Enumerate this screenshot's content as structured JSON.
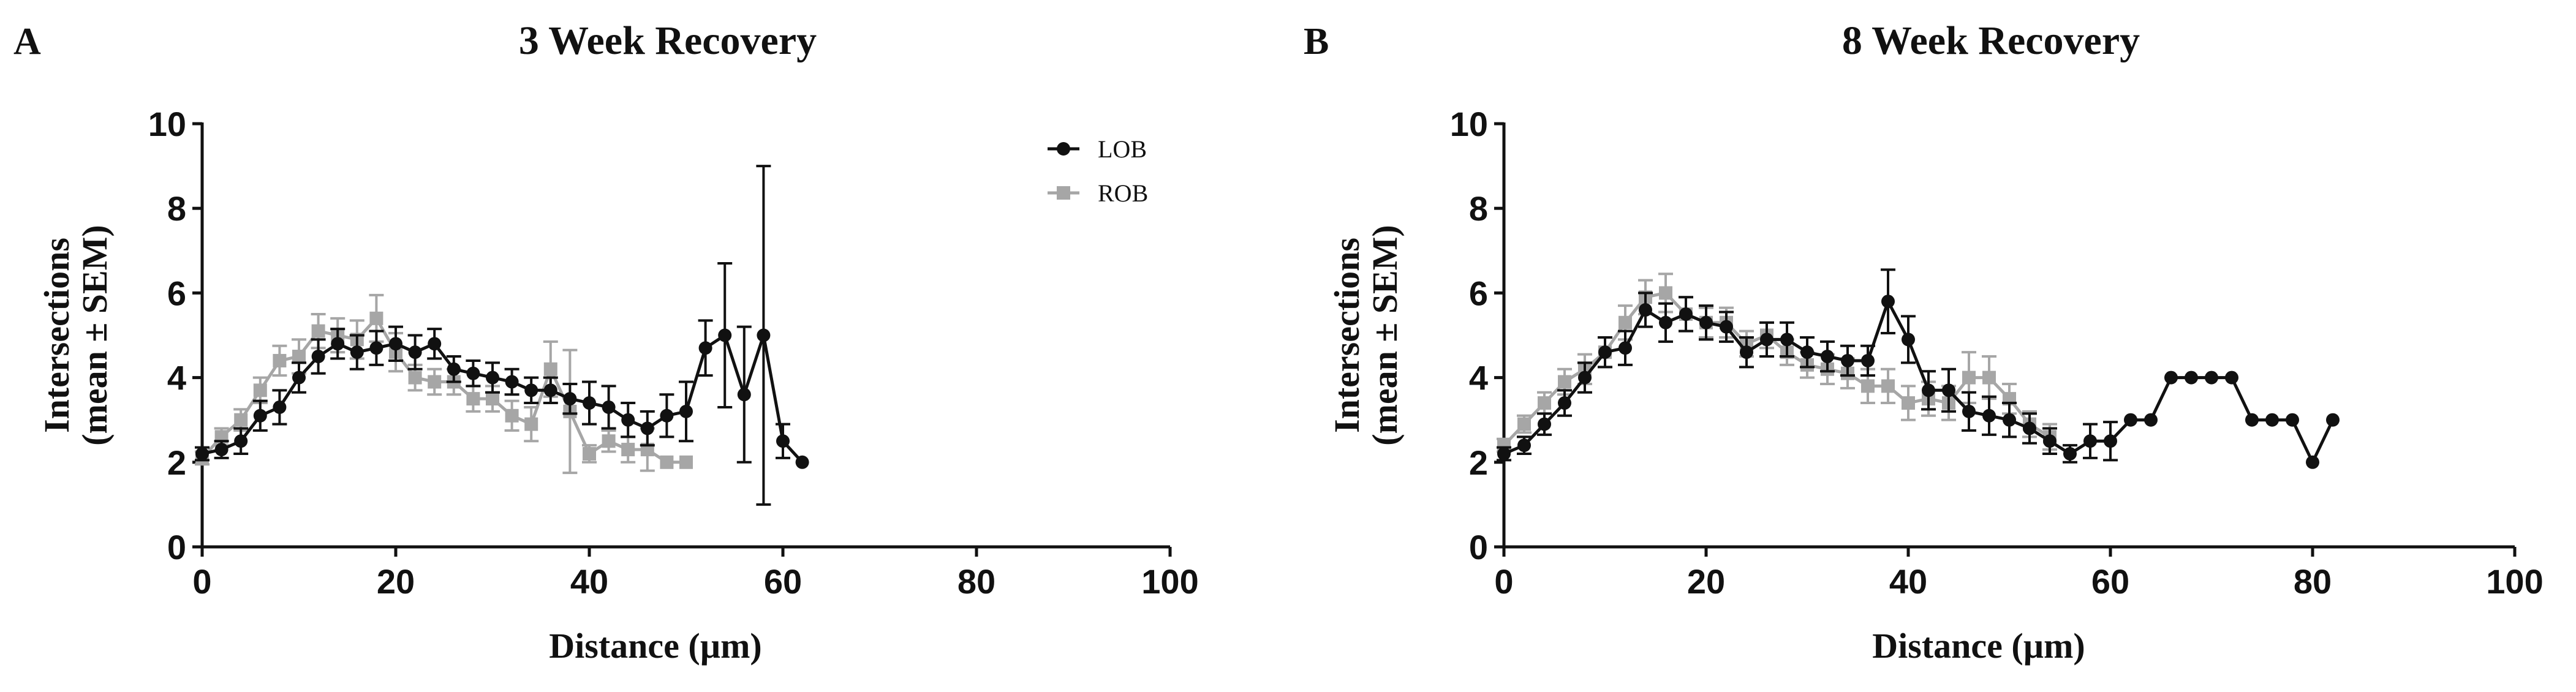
{
  "chart_data": [
    {
      "panel": "A",
      "type": "line",
      "title": "3 Week Recovery",
      "xlabel": "Distance (µm)",
      "ylabel_lines": [
        "Intersections",
        "(mean ± SEM)"
      ],
      "xlim": [
        0,
        100
      ],
      "ylim": [
        0,
        10
      ],
      "xticks": [
        0,
        20,
        40,
        60,
        80,
        100
      ],
      "yticks": [
        0,
        2,
        4,
        6,
        8,
        10
      ],
      "grid": false,
      "legend": {
        "placement": "top-right",
        "entries": [
          "LOB",
          "ROB"
        ]
      },
      "series": [
        {
          "name": "ROB",
          "color": "#a6a6a6",
          "marker": "square",
          "x": [
            0,
            2,
            4,
            6,
            8,
            10,
            12,
            14,
            16,
            18,
            20,
            22,
            24,
            26,
            28,
            30,
            32,
            34,
            36,
            38,
            40,
            42,
            44,
            46,
            48,
            50
          ],
          "y": [
            2.1,
            2.6,
            3.0,
            3.7,
            4.4,
            4.5,
            5.1,
            5.0,
            4.9,
            5.4,
            4.6,
            4.0,
            3.9,
            3.9,
            3.5,
            3.5,
            3.1,
            2.9,
            4.2,
            3.2,
            2.2,
            2.5,
            2.3,
            2.3,
            2.0,
            2.0
          ],
          "err": [
            0.15,
            0.2,
            0.25,
            0.3,
            0.35,
            0.4,
            0.4,
            0.4,
            0.45,
            0.55,
            0.45,
            0.3,
            0.3,
            0.3,
            0.3,
            0.3,
            0.35,
            0.4,
            0.65,
            1.45,
            0.2,
            0.25,
            0.3,
            0.5,
            0.0,
            0.0
          ]
        },
        {
          "name": "LOB",
          "color": "#111111",
          "marker": "circle",
          "x": [
            0,
            2,
            4,
            6,
            8,
            10,
            12,
            14,
            16,
            18,
            20,
            22,
            24,
            26,
            28,
            30,
            32,
            34,
            36,
            38,
            40,
            42,
            44,
            46,
            48,
            50,
            52,
            54,
            56,
            58,
            60,
            62
          ],
          "y": [
            2.2,
            2.3,
            2.5,
            3.1,
            3.3,
            4.0,
            4.5,
            4.8,
            4.6,
            4.7,
            4.8,
            4.6,
            4.8,
            4.2,
            4.1,
            4.0,
            3.9,
            3.7,
            3.7,
            3.5,
            3.4,
            3.3,
            3.0,
            2.8,
            3.1,
            3.2,
            4.7,
            5.0,
            3.6,
            5.0,
            2.5,
            2.0
          ],
          "err": [
            0.15,
            0.2,
            0.3,
            0.35,
            0.4,
            0.35,
            0.4,
            0.35,
            0.4,
            0.4,
            0.4,
            0.4,
            0.35,
            0.3,
            0.3,
            0.35,
            0.3,
            0.3,
            0.3,
            0.35,
            0.5,
            0.5,
            0.4,
            0.4,
            0.5,
            0.7,
            0.65,
            1.7,
            1.6,
            4.0,
            0.4,
            0.0
          ]
        }
      ]
    },
    {
      "panel": "B",
      "type": "line",
      "title": "8 Week Recovery",
      "xlabel": "Distance (µm)",
      "ylabel_lines": [
        "Intersections",
        "(mean ± SEM)"
      ],
      "xlim": [
        0,
        100
      ],
      "ylim": [
        0,
        10
      ],
      "xticks": [
        0,
        20,
        40,
        60,
        80,
        100
      ],
      "yticks": [
        0,
        2,
        4,
        6,
        8,
        10
      ],
      "grid": false,
      "series": [
        {
          "name": "ROB",
          "color": "#a6a6a6",
          "marker": "square",
          "x": [
            0,
            2,
            4,
            6,
            8,
            10,
            12,
            14,
            16,
            18,
            20,
            22,
            24,
            26,
            28,
            30,
            32,
            34,
            36,
            38,
            40,
            42,
            44,
            46,
            48,
            50,
            52,
            54
          ],
          "y": [
            2.4,
            2.9,
            3.4,
            3.9,
            4.2,
            4.6,
            5.3,
            5.9,
            6.0,
            5.5,
            5.3,
            5.3,
            4.8,
            5.0,
            4.6,
            4.3,
            4.2,
            4.1,
            3.8,
            3.8,
            3.4,
            3.5,
            3.4,
            4.0,
            4.0,
            3.5,
            2.9,
            2.6
          ],
          "err": [
            0.15,
            0.2,
            0.25,
            0.3,
            0.35,
            0.35,
            0.4,
            0.4,
            0.45,
            0.4,
            0.35,
            0.35,
            0.3,
            0.3,
            0.3,
            0.3,
            0.35,
            0.35,
            0.4,
            0.4,
            0.4,
            0.4,
            0.4,
            0.6,
            0.5,
            0.35,
            0.3,
            0.3
          ]
        },
        {
          "name": "LOB",
          "color": "#111111",
          "marker": "circle",
          "x": [
            0,
            2,
            4,
            6,
            8,
            10,
            12,
            14,
            16,
            18,
            20,
            22,
            24,
            26,
            28,
            30,
            32,
            34,
            36,
            38,
            40,
            42,
            44,
            46,
            48,
            50,
            52,
            54,
            56,
            58,
            60,
            62,
            64,
            66,
            68,
            70,
            72,
            74,
            76,
            78,
            80,
            82
          ],
          "y": [
            2.2,
            2.4,
            2.9,
            3.4,
            4.0,
            4.6,
            4.7,
            5.6,
            5.3,
            5.5,
            5.3,
            5.2,
            4.6,
            4.9,
            4.9,
            4.6,
            4.5,
            4.4,
            4.4,
            5.8,
            4.9,
            3.7,
            3.7,
            3.2,
            3.1,
            3.0,
            2.8,
            2.5,
            2.2,
            2.5,
            2.5,
            3.0,
            3.0,
            4.0,
            4.0,
            4.0,
            4.0,
            3.0,
            3.0,
            3.0,
            2.0,
            3.0
          ],
          "err": [
            0.15,
            0.2,
            0.25,
            0.3,
            0.35,
            0.35,
            0.4,
            0.4,
            0.45,
            0.4,
            0.4,
            0.35,
            0.35,
            0.4,
            0.4,
            0.35,
            0.35,
            0.35,
            0.35,
            0.75,
            0.55,
            0.45,
            0.5,
            0.45,
            0.45,
            0.4,
            0.35,
            0.3,
            0.2,
            0.4,
            0.45,
            0.0,
            0.0,
            0.0,
            0.0,
            0.0,
            0.0,
            0.0,
            0.0,
            0.0,
            0.0,
            0.0
          ]
        }
      ]
    }
  ]
}
